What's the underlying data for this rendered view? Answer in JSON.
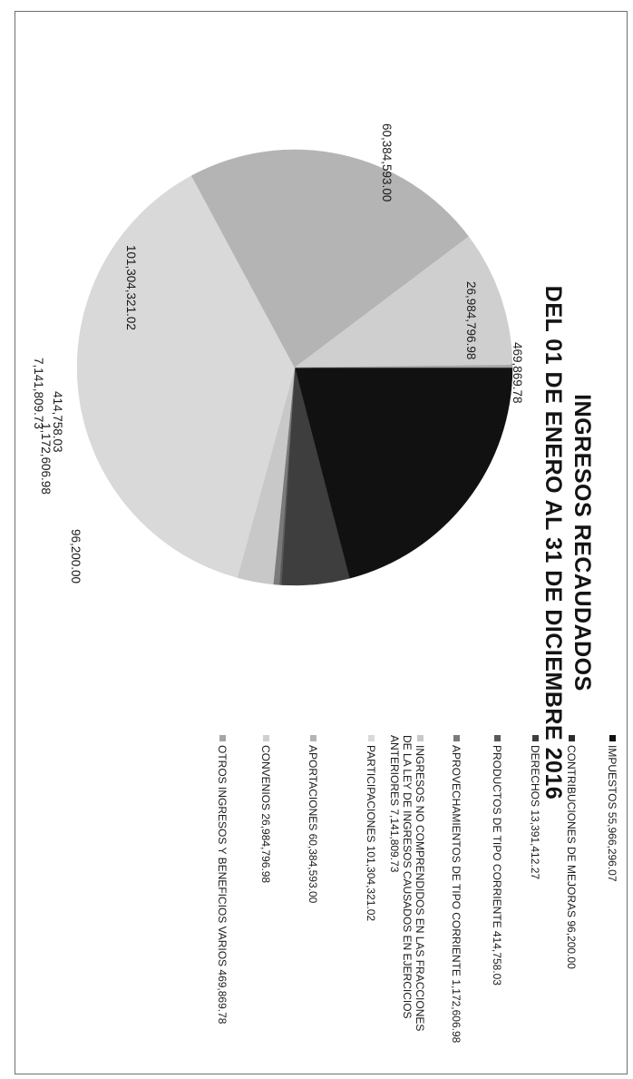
{
  "chart_data": {
    "type": "pie",
    "title_line1": "INGRESOS RECAUDADOS",
    "title_line2": "DEL 01 DE ENERO AL 31 DE DICIEMBRE 2016",
    "slices": [
      {
        "name": "IMPUESTOS",
        "value": 55966296.07,
        "label": "",
        "legend": "IMPUESTOS  55,966,296.07",
        "color": "#111111"
      },
      {
        "name": "CONTRIBUCIONES DE MEJORAS",
        "value": 96200.0,
        "label": "96,200.00",
        "legend": "CONTRIBUCIONES DE MEJORAS  96,200.00",
        "color": "#2b2b2b"
      },
      {
        "name": "DERECHOS",
        "value": 13391412.27,
        "label": "",
        "legend": "DERECHOS  13,391,412.27",
        "color": "#3e3e3e"
      },
      {
        "name": "PRODUCTOS DE TIPO CORRIENTE",
        "value": 414758.03,
        "label": "414,758.03",
        "legend": "PRODUCTOS DE TIPO CORRIENTE  414,758.03",
        "color": "#5a5a5a"
      },
      {
        "name": "APROVECHAMIENTOS DE TIPO CORRIENTE",
        "value": 1172606.98,
        "label": "1,172,606.98",
        "legend": "APROVECHAMIENTOS DE TIPO CORRIENTE  1,172,606.98",
        "color": "#7a7a7a"
      },
      {
        "name": "INGRESOS NO COMPRENDIDOS EN LAS FRACCIONES DE LA LEY DE INGRESOS CAUSADOS EN EJERCICIOS ANTERIORES",
        "value": 7141809.73,
        "label": "7,141,809.73",
        "legend": "INGRESOS NO COMPRENDIDOS EN LAS FRACCIONES DE LA LEY DE INGRESOS CAUSADOS EN EJERCICIOS ANTERIORES  7,141,809.73",
        "color": "#c8c8c8"
      },
      {
        "name": "PARTICIPACIONES",
        "value": 101304321.02,
        "label": "101,304,321.02",
        "legend": "PARTICIPACIONES  101,304,321.02",
        "color": "#d9d9d9"
      },
      {
        "name": "APORTACIONES",
        "value": 60384593.0,
        "label": "60,384,593.00",
        "legend": "APORTACIONES  60,384,593.00",
        "color": "#b4b4b4"
      },
      {
        "name": "CONVENIOS",
        "value": 26984796.98,
        "label": "26,984,796.98",
        "legend": "CONVENIOS  26,984,796.98",
        "color": "#cfcfcf"
      },
      {
        "name": "OTROS INGRESOS Y BENEFICIOS VARIOS",
        "value": 469869.78,
        "label": "469,869.78",
        "legend": "OTROS INGRESOS Y BENEFICIOS VARIOS  469,869.78",
        "color": "#a5a5a5"
      }
    ]
  }
}
